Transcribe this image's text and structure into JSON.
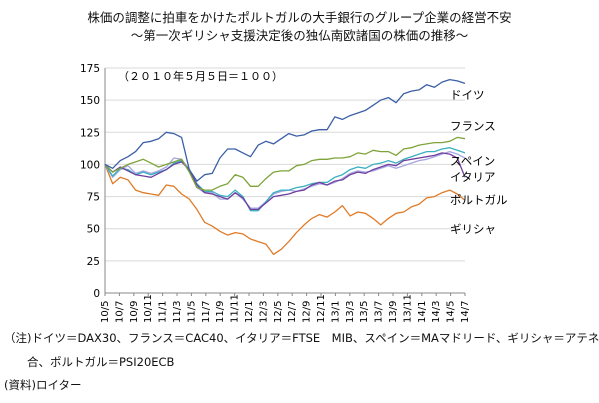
{
  "title": "株価の調整に拍車をかけたポルトガルの大手銀行のグループ企業の経営不安",
  "subtitle": "～第一次ギリシャ支援決定後の独仏南欧諸国の株価の推移～",
  "annotation": "（２０１０年５月５日＝１００）",
  "chart_data": {
    "type": "line",
    "title": "株価の調整に拍車をかけたポルトガルの大手銀行のグループ企業の経営不安",
    "subtitle": "～第一次ギリシャ支援決定後の独仏南欧諸国の株価の推移～",
    "ylim": [
      0,
      175
    ],
    "yticks": [
      0,
      25,
      50,
      75,
      100,
      125,
      150,
      175
    ],
    "grid": "horizontal",
    "legend": "inline-right",
    "x_ticks": [
      "10/5",
      "10/7",
      "10/9",
      "10/11",
      "11/1",
      "11/3",
      "11/5",
      "11/7",
      "11/9",
      "11/11",
      "12/1",
      "12/3",
      "12/5",
      "12/7",
      "12/9",
      "12/11",
      "13/1",
      "13/3",
      "13/5",
      "13/7",
      "13/9",
      "13/11",
      "14/1",
      "14/3",
      "14/5",
      "14/7"
    ],
    "series": [
      {
        "name": "ドイツ",
        "color": "#3a5fa6",
        "values": [
          100,
          97,
          103,
          106,
          110,
          117,
          118,
          120,
          125,
          124,
          121,
          96,
          87,
          92,
          93,
          105,
          112,
          112,
          109,
          106,
          115,
          118,
          116,
          120,
          124,
          122,
          123,
          126,
          127,
          127,
          137,
          135,
          138,
          140,
          142,
          146,
          150,
          152,
          148,
          155,
          157,
          158,
          162,
          160,
          164,
          166,
          165,
          163
        ]
      },
      {
        "name": "フランス",
        "color": "#7fa33a",
        "values": [
          100,
          94,
          97,
          100,
          102,
          104,
          101,
          98,
          100,
          102,
          104,
          94,
          82,
          80,
          80,
          83,
          85,
          92,
          90,
          83,
          83,
          89,
          94,
          95,
          95,
          99,
          100,
          103,
          104,
          104,
          105,
          105,
          106,
          109,
          108,
          111,
          110,
          110,
          107,
          112,
          113,
          115,
          116,
          117,
          117,
          118,
          121,
          120
        ]
      },
      {
        "name": "スペイン",
        "color": "#3ab0c0",
        "values": [
          100,
          91,
          97,
          96,
          92,
          94,
          92,
          94,
          96,
          101,
          103,
          95,
          85,
          79,
          79,
          76,
          75,
          80,
          75,
          64,
          64,
          71,
          78,
          80,
          80,
          82,
          83,
          85,
          86,
          86,
          90,
          92,
          96,
          98,
          97,
          100,
          101,
          103,
          101,
          104,
          106,
          108,
          110,
          110,
          112,
          113,
          111,
          109
        ]
      },
      {
        "name": "イタリア",
        "color": "#a6a6e0",
        "values": [
          100,
          90,
          96,
          99,
          93,
          95,
          93,
          95,
          98,
          105,
          104,
          96,
          82,
          78,
          78,
          73,
          73,
          78,
          73,
          66,
          66,
          71,
          77,
          79,
          80,
          79,
          81,
          83,
          85,
          84,
          86,
          89,
          93,
          95,
          94,
          95,
          97,
          99,
          97,
          99,
          101,
          103,
          104,
          106,
          108,
          110,
          108,
          105
        ]
      },
      {
        "name": "ポルトガル",
        "color": "#7040a0",
        "values": [
          100,
          94,
          98,
          95,
          92,
          91,
          90,
          93,
          96,
          100,
          102,
          96,
          84,
          78,
          77,
          75,
          73,
          78,
          74,
          65,
          65,
          70,
          75,
          76,
          77,
          79,
          80,
          84,
          86,
          84,
          87,
          88,
          92,
          94,
          93,
          96,
          98,
          100,
          99,
          103,
          104,
          105,
          106,
          107,
          109,
          108,
          105,
          90
        ]
      },
      {
        "name": "ギリシャ",
        "color": "#e07b28",
        "values": [
          100,
          85,
          90,
          88,
          80,
          78,
          77,
          76,
          84,
          83,
          77,
          73,
          65,
          55,
          52,
          48,
          45,
          47,
          46,
          42,
          40,
          38,
          30,
          34,
          40,
          47,
          53,
          58,
          61,
          59,
          63,
          68,
          60,
          63,
          62,
          58,
          53,
          58,
          62,
          63,
          67,
          69,
          74,
          75,
          78,
          80,
          77,
          72
        ]
      }
    ]
  },
  "notes": [
    "（注)ドイツ＝DAX30、フランス＝CAC40、イタリア＝FTSE　MIB、スペイン＝MAマドリード、ギリシャ＝アテネ総",
    "　　合、ポルトガル＝PSI20ECB",
    "(資料)ロイター"
  ]
}
